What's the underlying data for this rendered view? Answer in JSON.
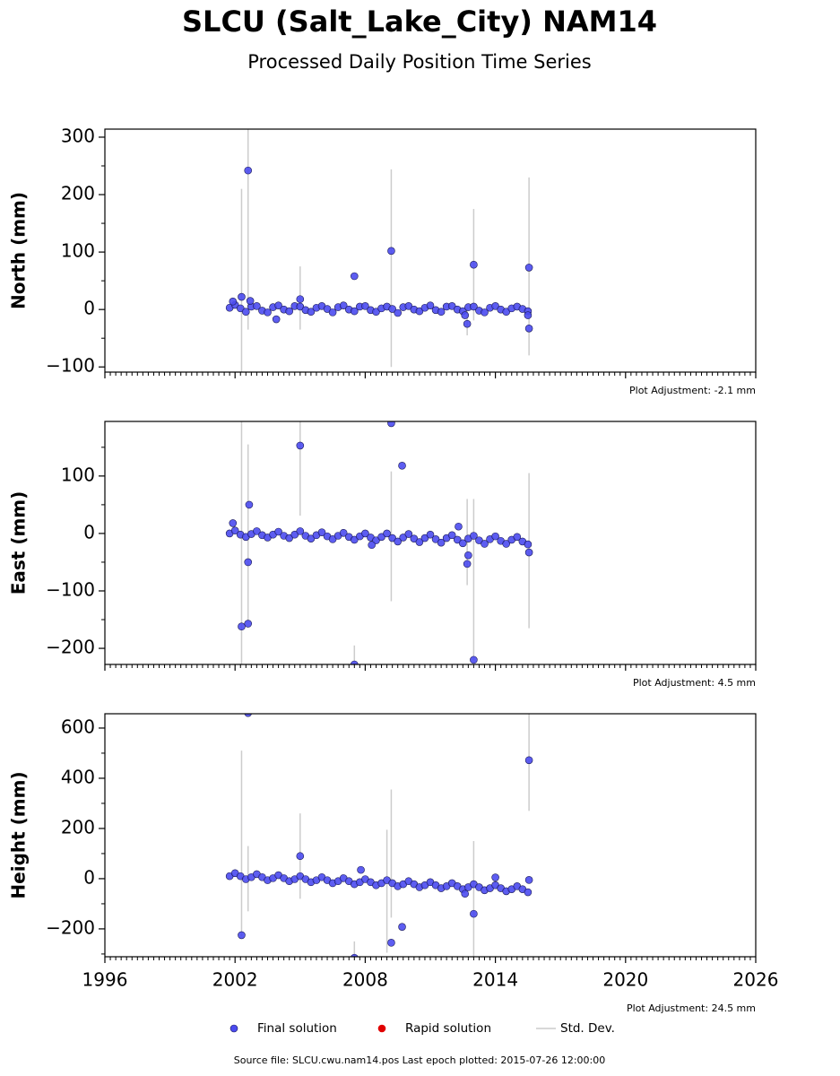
{
  "title": "SLCU (Salt_Lake_City) NAM14",
  "subtitle": "Processed Daily Position Time Series",
  "legend": [
    {
      "name": "Final solution",
      "color": "#4b4bf0"
    },
    {
      "name": "Rapid solution",
      "color": "#e00000"
    },
    {
      "name": "Std. Dev.",
      "color": "#cccccc"
    }
  ],
  "footer": "Source file: SLCU.cwu.nam14.pos  Last epoch plotted: 2015-07-26 12:00:00",
  "chart_data": [
    {
      "type": "scatter",
      "ylabel": "North (mm)",
      "annotation": "Plot Adjustment: -2.1 mm",
      "xlim": [
        1996,
        2026
      ],
      "xticks": [
        1996,
        2002,
        2008,
        2014,
        2020,
        2026
      ],
      "xtick_labels": false,
      "ylim": [
        -109,
        314
      ],
      "yticks": [
        {
          "value": -100,
          "label": "−100"
        },
        0,
        100,
        200,
        300
      ],
      "color": "#4b4bf0",
      "x": [
        2001.75,
        2002,
        2002.25,
        2002.5,
        2002.75,
        2003,
        2003.25,
        2003.5,
        2003.75,
        2004,
        2004.25,
        2004.5,
        2004.75,
        2005,
        2005.25,
        2005.5,
        2005.75,
        2006,
        2006.25,
        2006.5,
        2006.75,
        2007,
        2007.25,
        2007.5,
        2007.75,
        2008,
        2008.25,
        2008.5,
        2008.75,
        2009,
        2009.25,
        2009.5,
        2009.75,
        2010,
        2010.25,
        2010.5,
        2010.75,
        2011,
        2011.25,
        2011.5,
        2011.75,
        2012,
        2012.25,
        2012.5,
        2012.75,
        2013,
        2013.25,
        2013.5,
        2013.75,
        2014,
        2014.25,
        2014.5,
        2014.75,
        2015,
        2015.25,
        2015.5,
        2002.3,
        2002.6,
        2002.7,
        2003.9,
        2005.0,
        2007.5,
        2009.2,
        2012.7,
        2012.6,
        2013.0,
        2015.55,
        2015.55,
        2015.5,
        2001.9
      ],
      "values": [
        3,
        8,
        2,
        -4,
        5,
        6,
        -2,
        -5,
        4,
        7,
        0,
        -3,
        6,
        5,
        -1,
        -4,
        3,
        6,
        1,
        -5,
        4,
        7,
        0,
        -3,
        5,
        6,
        -1,
        -4,
        2,
        5,
        1,
        -6,
        4,
        6,
        0,
        -3,
        3,
        7,
        -1,
        -4,
        5,
        6,
        0,
        -3,
        4,
        5,
        -2,
        -5,
        3,
        6,
        0,
        -4,
        2,
        5,
        1,
        -3,
        22,
        242,
        15,
        -17,
        18,
        58,
        102,
        -25,
        -10,
        78,
        73,
        -33,
        -10,
        14
      ],
      "std_dev": {
        "x": [
          2002.3,
          2002.6,
          2005.0,
          2009.2,
          2012.7,
          2013.0,
          2015.55
        ],
        "center": [
          50,
          140,
          20,
          72,
          -20,
          78,
          75
        ],
        "error": [
          160,
          175,
          55,
          172,
          25,
          97,
          155
        ]
      }
    },
    {
      "type": "scatter",
      "ylabel": "East (mm)",
      "annotation": "Plot Adjustment: 4.5 mm",
      "xlim": [
        1996,
        2026
      ],
      "xticks": [
        1996,
        2002,
        2008,
        2014,
        2020,
        2026
      ],
      "xtick_labels": false,
      "ylim": [
        -228,
        195
      ],
      "yticks": [
        {
          "value": -200,
          "label": "−200"
        },
        {
          "value": -100,
          "label": "−100"
        },
        0,
        100
      ],
      "color": "#4b4bf0",
      "x": [
        2001.75,
        2002,
        2002.25,
        2002.5,
        2002.75,
        2003,
        2003.25,
        2003.5,
        2003.75,
        2004,
        2004.25,
        2004.5,
        2004.75,
        2005,
        2005.25,
        2005.5,
        2005.75,
        2006,
        2006.25,
        2006.5,
        2006.75,
        2007,
        2007.25,
        2007.5,
        2007.75,
        2008,
        2008.25,
        2008.5,
        2008.75,
        2009,
        2009.25,
        2009.5,
        2009.75,
        2010,
        2010.25,
        2010.5,
        2010.75,
        2011,
        2011.25,
        2011.5,
        2011.75,
        2012,
        2012.25,
        2012.5,
        2012.75,
        2013,
        2013.25,
        2013.5,
        2013.75,
        2014,
        2014.25,
        2014.5,
        2014.75,
        2015,
        2015.25,
        2015.5,
        2001.9,
        2002.3,
        2002.6,
        2002.6,
        2002.65,
        2005.0,
        2007.5,
        2009.2,
        2009.7,
        2012.7,
        2012.75,
        2012.3,
        2013.0,
        2015.55,
        2008.3
      ],
      "values": [
        0,
        5,
        -2,
        -6,
        -1,
        4,
        -3,
        -7,
        -2,
        3,
        -4,
        -8,
        -2,
        4,
        -4,
        -9,
        -3,
        2,
        -5,
        -10,
        -4,
        1,
        -6,
        -11,
        -5,
        0,
        -7,
        -12,
        -6,
        0,
        -8,
        -14,
        -7,
        -1,
        -9,
        -15,
        -8,
        -2,
        -10,
        -16,
        -8,
        -3,
        -11,
        -17,
        -9,
        -4,
        -12,
        -18,
        -10,
        -5,
        -13,
        -18,
        -11,
        -6,
        -14,
        -19,
        18,
        -162,
        -157,
        -50,
        50,
        153,
        -228,
        192,
        118,
        -53,
        -38,
        12,
        -220,
        -33,
        -20
      ],
      "std_dev": {
        "x": [
          2002.3,
          2002.6,
          2005.0,
          2007.5,
          2009.2,
          2012.7,
          2013.0,
          2015.55
        ],
        "center": [
          -20,
          0,
          113,
          -215,
          -5,
          -15,
          -80,
          -30
        ],
        "error": [
          215,
          155,
          82,
          20,
          113,
          75,
          140,
          135
        ]
      }
    },
    {
      "type": "scatter",
      "ylabel": "Height (mm)",
      "annotation": "Plot Adjustment: 24.5 mm",
      "xlim": [
        1996,
        2026
      ],
      "xticks": [
        1996,
        2002,
        2008,
        2014,
        2020,
        2026
      ],
      "xtick_labels": true,
      "ylim": [
        -311,
        657
      ],
      "yticks": [
        {
          "value": -200,
          "label": "−200"
        },
        0,
        200,
        400,
        600
      ],
      "color": "#4b4bf0",
      "x": [
        2001.75,
        2002,
        2002.25,
        2002.5,
        2002.75,
        2003,
        2003.25,
        2003.5,
        2003.75,
        2004,
        2004.25,
        2004.5,
        2004.75,
        2005,
        2005.25,
        2005.5,
        2005.75,
        2006,
        2006.25,
        2006.5,
        2006.75,
        2007,
        2007.25,
        2007.5,
        2007.75,
        2008,
        2008.25,
        2008.5,
        2008.75,
        2009,
        2009.25,
        2009.5,
        2009.75,
        2010,
        2010.25,
        2010.5,
        2010.75,
        2011,
        2011.25,
        2011.5,
        2011.75,
        2012,
        2012.25,
        2012.5,
        2012.75,
        2013,
        2013.25,
        2013.5,
        2013.75,
        2014,
        2014.25,
        2014.5,
        2014.75,
        2015,
        2015.25,
        2015.5,
        2002.3,
        2002.6,
        2005.0,
        2007.8,
        2007.5,
        2009.2,
        2009.7,
        2012.6,
        2013.0,
        2015.55,
        2015.55,
        2014.0
      ],
      "values": [
        10,
        22,
        10,
        -2,
        6,
        18,
        6,
        -6,
        2,
        14,
        2,
        -10,
        -2,
        10,
        -2,
        -14,
        -6,
        6,
        -6,
        -18,
        -10,
        2,
        -10,
        -22,
        -14,
        -2,
        -14,
        -26,
        -18,
        -6,
        -18,
        -30,
        -22,
        -10,
        -22,
        -34,
        -26,
        -14,
        -26,
        -38,
        -30,
        -18,
        -30,
        -42,
        -34,
        -22,
        -34,
        -46,
        -38,
        -26,
        -38,
        -50,
        -42,
        -30,
        -42,
        -54,
        -225,
        660,
        90,
        35,
        -315,
        -255,
        -192,
        -60,
        -140,
        472,
        -5,
        5
      ],
      "std_dev": {
        "x": [
          2002.3,
          2002.6,
          2005.0,
          2007.5,
          2009.0,
          2009.2,
          2013.0,
          2015.55
        ],
        "center": [
          140,
          0,
          90,
          -300,
          -50,
          100,
          -140,
          470
        ],
        "error": [
          370,
          130,
          170,
          50,
          245,
          255,
          290,
          200
        ]
      }
    }
  ]
}
